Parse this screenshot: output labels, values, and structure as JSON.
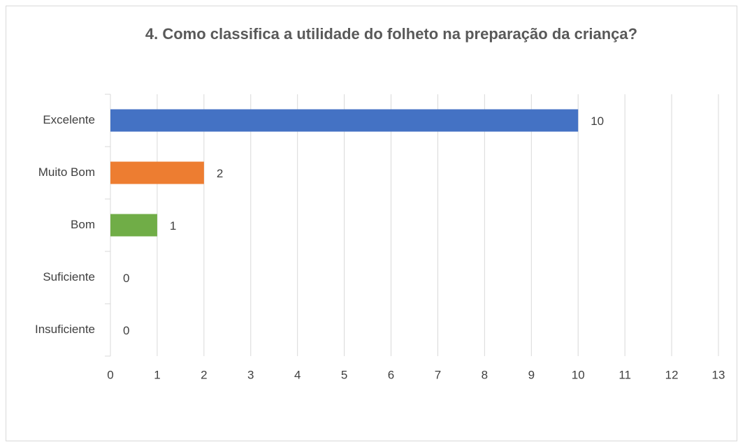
{
  "chart_data": {
    "type": "bar",
    "orientation": "horizontal",
    "title": "4. Como classifica a utilidade do folheto na preparação da criança?",
    "categories": [
      "Excelente",
      "Muito Bom",
      "Bom",
      "Suficiente",
      "Insuficiente"
    ],
    "values": [
      10,
      2,
      1,
      0,
      0
    ],
    "colors": [
      "#4472c4",
      "#ed7d31",
      "#70ad47",
      "#a5a5a5",
      "#ffc000"
    ],
    "xlim": [
      0,
      13
    ],
    "xticks": [
      0,
      1,
      2,
      3,
      4,
      5,
      6,
      7,
      8,
      9,
      10,
      11,
      12,
      13
    ],
    "grid": true
  }
}
